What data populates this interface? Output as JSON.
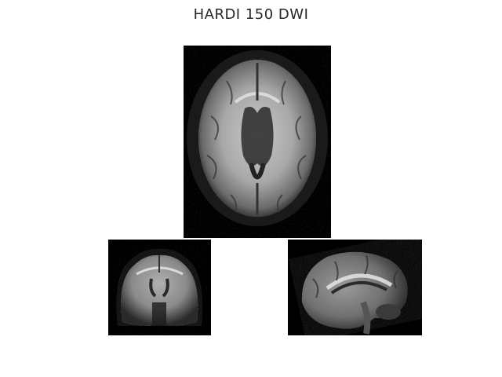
{
  "figure": {
    "title": "HARDI 150 DWI"
  },
  "panels": [
    {
      "id": "axial",
      "icon": "brain-axial-slice"
    },
    {
      "id": "coronal",
      "icon": "brain-coronal-slice"
    },
    {
      "id": "sagittal",
      "icon": "brain-sagittal-slice"
    }
  ],
  "colors": {
    "background": "#ffffff",
    "panel_background": "#000000",
    "title_text": "#262626"
  }
}
